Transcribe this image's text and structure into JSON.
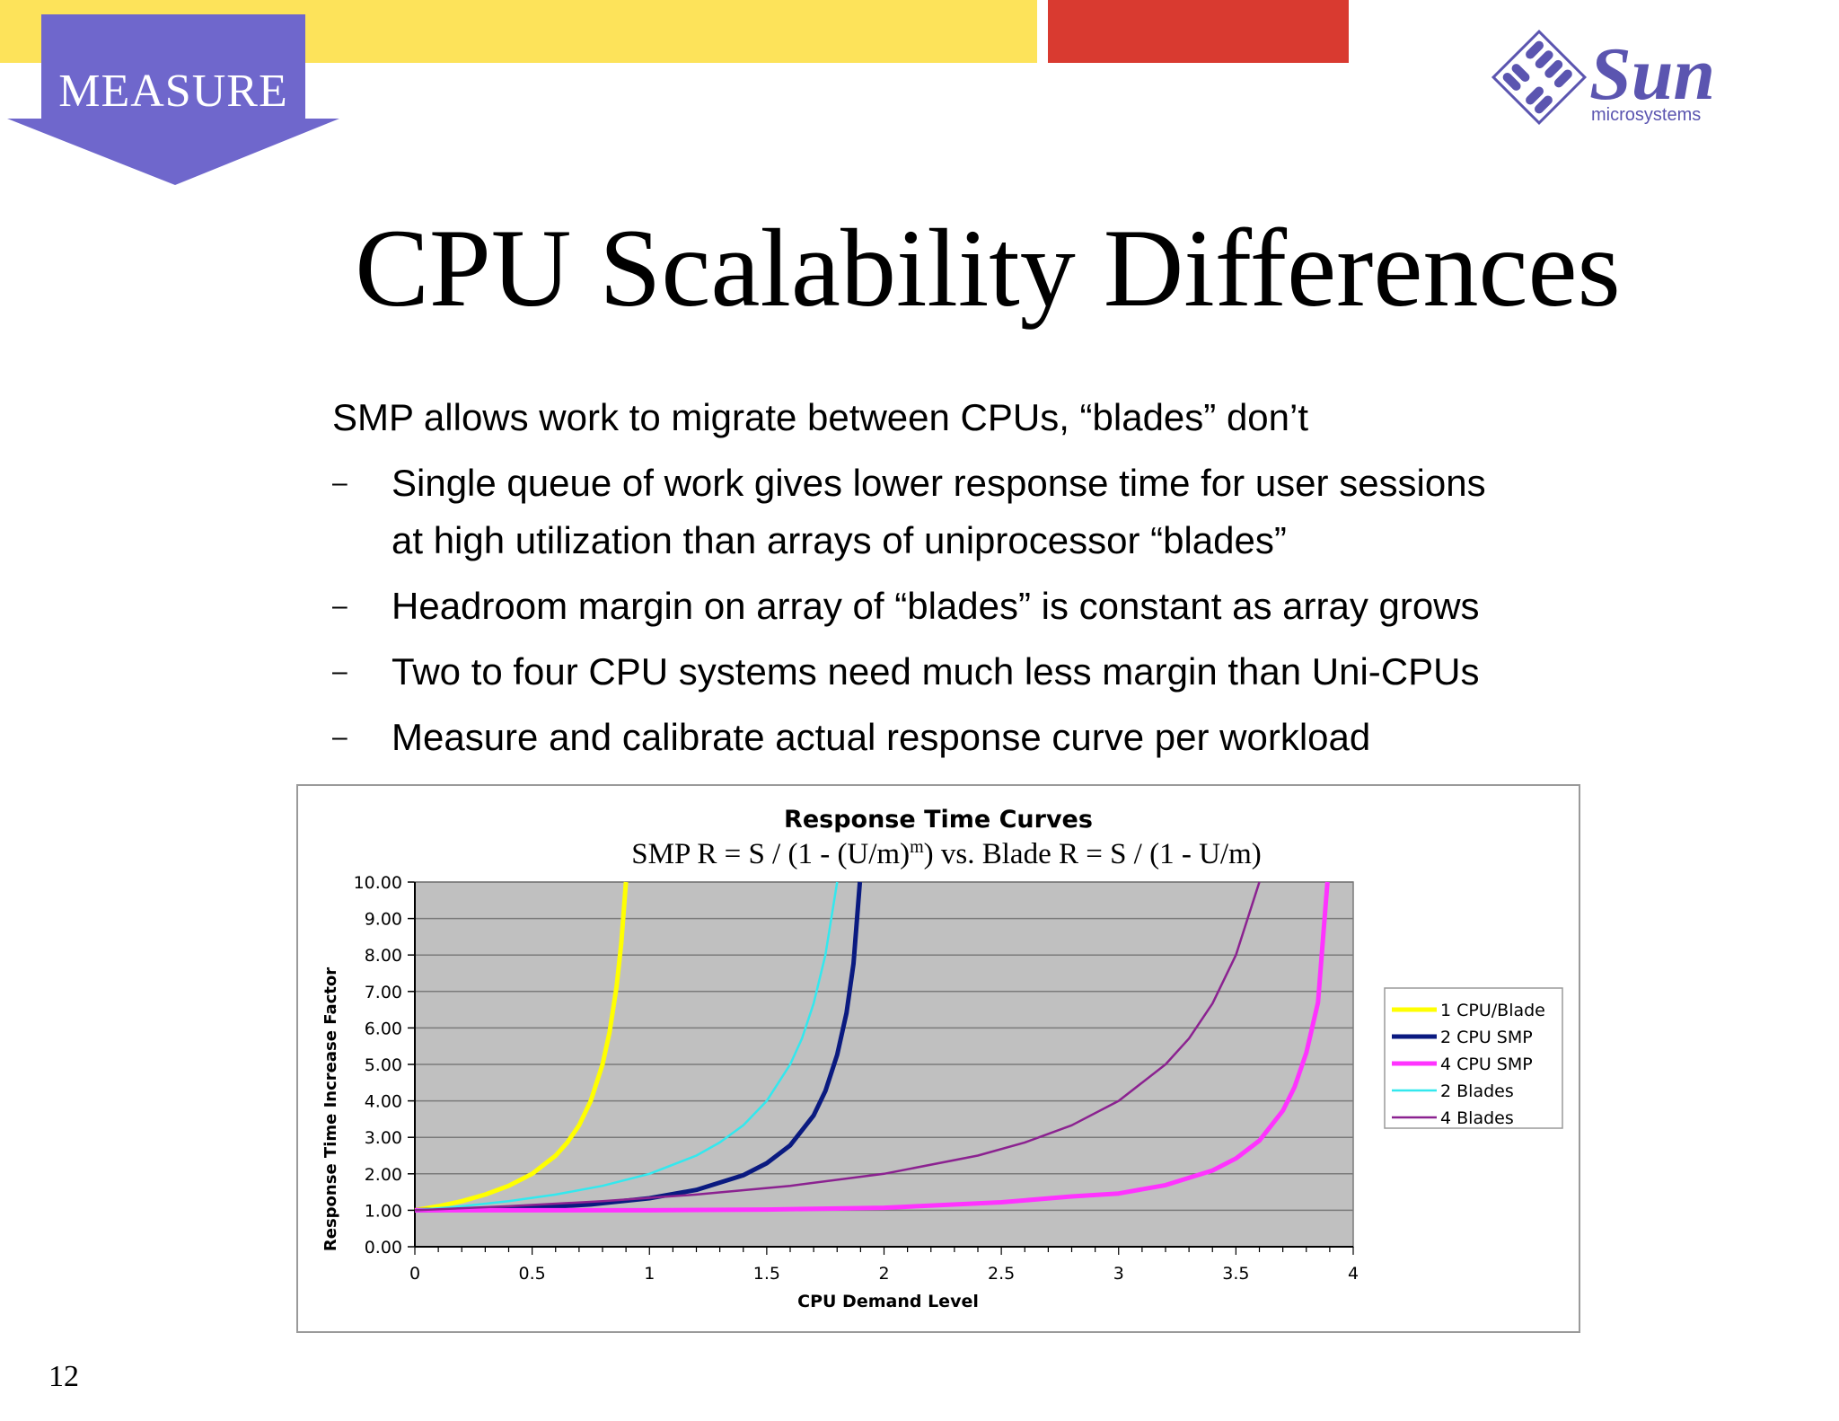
{
  "header": {
    "section_label": "MEASURE",
    "colors": {
      "yellow_bar": "#fde35a",
      "red_bar": "#d93a30",
      "section_badge": "#6f67cc"
    },
    "logo": {
      "icon": "sun-logo-icon",
      "wordmark": "Sun",
      "subtitle": "microsystems",
      "color": "#5b55b0"
    }
  },
  "slide": {
    "title": "CPU Scalability Differences",
    "lead": "SMP allows work to migrate between CPUs, “blades” don’t",
    "bullet_marker": "–",
    "bullets": [
      {
        "lines": [
          "Single queue of work gives lower response time for user sessions",
          "at high utilization than arrays of uniprocessor “blades”"
        ]
      },
      {
        "lines": [
          "Headroom margin on array of “blades” is constant as array grows"
        ]
      },
      {
        "lines": [
          "Two to four CPU systems need much less margin than Uni-CPUs"
        ]
      },
      {
        "lines": [
          "Measure and calibrate actual response curve per workload"
        ]
      }
    ],
    "page_number": "12"
  },
  "chart_data": {
    "type": "line",
    "title": "Response Time Curves",
    "subtitle": {
      "before": "SMP R = S / (1 - (U/m)",
      "superscript": "m",
      "after": ") vs. Blade R = S / (1 - U/m)"
    },
    "xlabel": "CPU Demand Level",
    "ylabel": "Response Time Increase Factor",
    "xlim": [
      0,
      4
    ],
    "ylim": [
      0,
      10
    ],
    "x_ticks": [
      "0",
      "0.5",
      "1",
      "1.5",
      "2",
      "2.5",
      "3",
      "3.5",
      "4"
    ],
    "y_ticks": [
      "0.00",
      "1.00",
      "2.00",
      "3.00",
      "4.00",
      "5.00",
      "6.00",
      "7.00",
      "8.00",
      "9.00",
      "10.00"
    ],
    "grid": true,
    "plot_background": "#c0c0c0",
    "legend_position": "right",
    "series": [
      {
        "name": "1 CPU/Blade",
        "color": "#ffff00",
        "width": "thick",
        "x": [
          0,
          0.1,
          0.2,
          0.3,
          0.4,
          0.5,
          0.6,
          0.65,
          0.7,
          0.75,
          0.8,
          0.83,
          0.86,
          0.88,
          0.9
        ],
        "y": [
          1.0,
          1.11,
          1.25,
          1.43,
          1.67,
          2.0,
          2.5,
          2.86,
          3.33,
          4.0,
          5.0,
          5.88,
          7.14,
          8.33,
          10.0
        ]
      },
      {
        "name": "2 CPU SMP",
        "color": "#0a1a80",
        "width": "thick",
        "x": [
          0,
          0.25,
          0.5,
          0.75,
          1.0,
          1.2,
          1.4,
          1.5,
          1.6,
          1.7,
          1.75,
          1.8,
          1.84,
          1.87,
          1.897
        ],
        "y": [
          1.0,
          1.02,
          1.07,
          1.16,
          1.33,
          1.56,
          1.96,
          2.29,
          2.78,
          3.6,
          4.27,
          5.26,
          6.41,
          7.76,
          10.0
        ]
      },
      {
        "name": "4 CPU SMP",
        "color": "#ff33ff",
        "width": "thick",
        "x": [
          0,
          0.5,
          1.0,
          1.5,
          2.0,
          2.5,
          2.8,
          3.0,
          3.2,
          3.4,
          3.5,
          3.6,
          3.7,
          3.75,
          3.8,
          3.85,
          3.89
        ],
        "y": [
          1.0,
          1.0,
          1.0,
          1.02,
          1.07,
          1.22,
          1.38,
          1.46,
          1.69,
          2.09,
          2.42,
          2.91,
          3.73,
          4.38,
          5.32,
          6.7,
          10.0
        ]
      },
      {
        "name": "2 Blades",
        "color": "#33e8ee",
        "width": "thin",
        "x": [
          0,
          0.2,
          0.4,
          0.6,
          0.8,
          1.0,
          1.2,
          1.3,
          1.4,
          1.5,
          1.6,
          1.65,
          1.7,
          1.75,
          1.8
        ],
        "y": [
          1.0,
          1.11,
          1.25,
          1.43,
          1.67,
          2.0,
          2.5,
          2.86,
          3.33,
          4.0,
          5.0,
          5.71,
          6.67,
          8.0,
          10.0
        ]
      },
      {
        "name": "4 Blades",
        "color": "#8b2290",
        "width": "thin",
        "x": [
          0,
          0.4,
          0.8,
          1.2,
          1.6,
          2.0,
          2.4,
          2.6,
          2.8,
          3.0,
          3.2,
          3.3,
          3.4,
          3.5,
          3.6
        ],
        "y": [
          1.0,
          1.11,
          1.25,
          1.43,
          1.67,
          2.0,
          2.5,
          2.86,
          3.33,
          4.0,
          5.0,
          5.71,
          6.67,
          8.0,
          10.0
        ]
      }
    ]
  }
}
